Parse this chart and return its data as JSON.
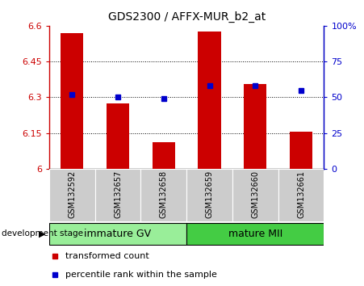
{
  "title": "GDS2300 / AFFX-MUR_b2_at",
  "samples": [
    "GSM132592",
    "GSM132657",
    "GSM132658",
    "GSM132659",
    "GSM132660",
    "GSM132661"
  ],
  "bar_values": [
    6.57,
    6.275,
    6.11,
    6.575,
    6.355,
    6.155
  ],
  "percentile_values": [
    52,
    50,
    49,
    58,
    58,
    55
  ],
  "bar_bottom": 6.0,
  "ylim_left": [
    6.0,
    6.6
  ],
  "ylim_right": [
    0,
    100
  ],
  "yticks_left": [
    6.0,
    6.15,
    6.3,
    6.45,
    6.6
  ],
  "yticks_right": [
    0,
    25,
    50,
    75,
    100
  ],
  "ytick_labels_left": [
    "6",
    "6.15",
    "6.3",
    "6.45",
    "6.6"
  ],
  "ytick_labels_right": [
    "0",
    "25",
    "50",
    "75",
    "100%"
  ],
  "hlines": [
    6.15,
    6.3,
    6.45
  ],
  "bar_color": "#cc0000",
  "dot_color": "#0000cc",
  "groups": [
    {
      "label": "immature GV",
      "indices": [
        0,
        1,
        2
      ],
      "color": "#99ee99"
    },
    {
      "label": "mature MII",
      "indices": [
        3,
        4,
        5
      ],
      "color": "#44cc44"
    }
  ],
  "group_label": "development stage",
  "legend_bar_label": "transformed count",
  "legend_dot_label": "percentile rank within the sample",
  "bar_width": 0.5,
  "figsize": [
    4.51,
    3.54
  ],
  "dpi": 100
}
